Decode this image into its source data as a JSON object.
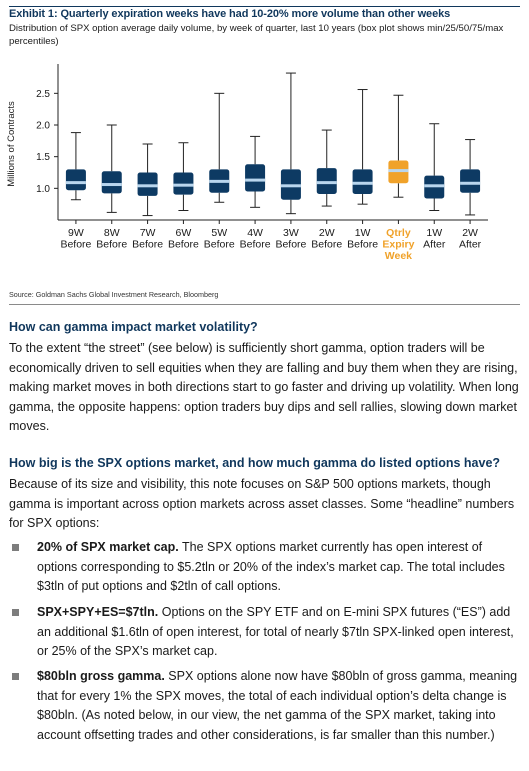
{
  "exhibit": {
    "title": "Exhibit 1: Quarterly expiration weeks have had 10-20% more volume than other weeks",
    "subtitle": "Distribution of SPX option average daily volume, by week of quarter, last 10 years (box plot shows min/25/50/75/max percentiles)",
    "source": "Source: Goldman Sachs Global Investment Research, Bloomberg"
  },
  "chart_data": {
    "type": "box",
    "ylabel": "Millions of Contracts",
    "ylim": [
      0.5,
      2.9
    ],
    "yticks": [
      "1.0",
      "1.5",
      "2.0",
      "2.5"
    ],
    "grid": false,
    "colors": {
      "default": "#0d3a63",
      "highlight": "#f0a22a",
      "median": "#b9d6ee",
      "text": "#1a1a1a"
    },
    "categories": [
      {
        "lines": [
          "9W",
          "Before"
        ],
        "highlight": false,
        "min": 0.82,
        "q1": 0.97,
        "median": 1.09,
        "q3": 1.3,
        "max": 1.88
      },
      {
        "lines": [
          "8W",
          "Before"
        ],
        "highlight": false,
        "min": 0.62,
        "q1": 0.92,
        "median": 1.06,
        "q3": 1.27,
        "max": 2.0
      },
      {
        "lines": [
          "7W",
          "Before"
        ],
        "highlight": false,
        "min": 0.57,
        "q1": 0.88,
        "median": 1.04,
        "q3": 1.25,
        "max": 1.7
      },
      {
        "lines": [
          "6W",
          "Before"
        ],
        "highlight": false,
        "min": 0.65,
        "q1": 0.9,
        "median": 1.05,
        "q3": 1.25,
        "max": 1.72
      },
      {
        "lines": [
          "5W",
          "Before"
        ],
        "highlight": false,
        "min": 0.78,
        "q1": 0.93,
        "median": 1.11,
        "q3": 1.3,
        "max": 2.5
      },
      {
        "lines": [
          "4W",
          "Before"
        ],
        "highlight": false,
        "min": 0.7,
        "q1": 0.95,
        "median": 1.13,
        "q3": 1.38,
        "max": 1.82
      },
      {
        "lines": [
          "3W",
          "Before"
        ],
        "highlight": false,
        "min": 0.6,
        "q1": 0.82,
        "median": 1.04,
        "q3": 1.3,
        "max": 2.82
      },
      {
        "lines": [
          "2W",
          "Before"
        ],
        "highlight": false,
        "min": 0.72,
        "q1": 0.91,
        "median": 1.09,
        "q3": 1.32,
        "max": 1.92
      },
      {
        "lines": [
          "1W",
          "Before"
        ],
        "highlight": false,
        "min": 0.75,
        "q1": 0.91,
        "median": 1.08,
        "q3": 1.3,
        "max": 2.56
      },
      {
        "lines": [
          "Qtrly",
          "Expiry",
          "Week"
        ],
        "highlight": true,
        "min": 0.86,
        "q1": 1.08,
        "median": 1.28,
        "q3": 1.44,
        "max": 2.47
      },
      {
        "lines": [
          "1W",
          "After"
        ],
        "highlight": false,
        "min": 0.65,
        "q1": 0.84,
        "median": 1.04,
        "q3": 1.2,
        "max": 2.02
      },
      {
        "lines": [
          "2W",
          "After"
        ],
        "highlight": false,
        "min": 0.58,
        "q1": 0.93,
        "median": 1.08,
        "q3": 1.3,
        "max": 1.77
      }
    ]
  },
  "sections": {
    "gamma_heading": "How can gamma impact market volatility?",
    "gamma_para": "To the extent “the street” (see below) is sufficiently short gamma, option traders will be economically driven to sell equities when they are falling and buy them when they are rising, making market moves in both directions start to go faster and driving up volatility. When long gamma, the opposite happens: option traders buy dips and sell rallies, slowing down market moves.",
    "size_heading": "How big is the SPX options market, and how much gamma do listed options have?",
    "size_para": "Because of its size and visibility, this note focuses on S&P 500 options markets, though gamma is important across option markets across asset classes. Some “headline” numbers for SPX options:",
    "bullets": [
      {
        "bold": "20% of SPX market cap.",
        "text": " The SPX options market currently has open interest of options corresponding to $5.2tln or 20% of the index’s market cap. The total includes $3tln of put options and $2tln of call options."
      },
      {
        "bold": "SPX+SPY+ES=$7tln.",
        "text": " Options on the SPY ETF and on E-mini SPX futures (“ES”) add an additional $1.6tln of open interest, for total of nearly $7tln SPX-linked open interest, or 25% of the SPX’s market cap."
      },
      {
        "bold": "$80bln gross gamma.",
        "text": " SPX options alone now have $80bln of gross gamma, meaning that for every 1% the SPX moves, the total of each individual option’s delta change is $80bln. (As noted below, in our view, the net gamma of the SPX market, taking into account offsetting trades and other considerations, is far smaller than this number.)"
      }
    ]
  }
}
